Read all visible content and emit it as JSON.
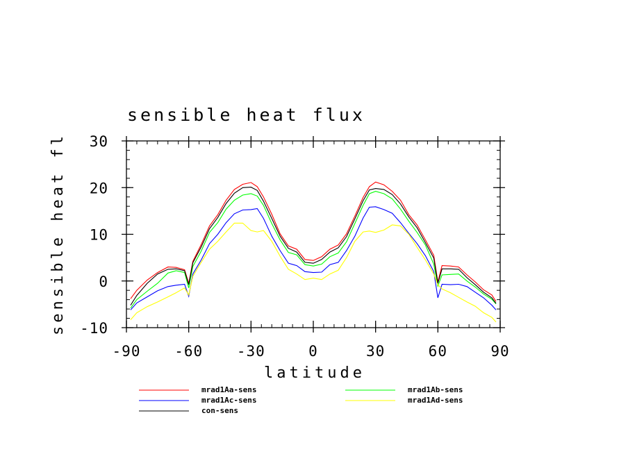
{
  "chart_data": {
    "type": "line",
    "title": "sensible heat flux",
    "xlabel": "latitude",
    "ylabel": "sensible heat fl",
    "xlim": [
      -90,
      90
    ],
    "ylim": [
      -10,
      30
    ],
    "xticks": [
      "-90",
      "-60",
      "-30",
      "0",
      "30",
      "60",
      "90"
    ],
    "yticks": [
      "-10",
      "0",
      "10",
      "20",
      "30"
    ],
    "grid": false,
    "legend_position": "bottom",
    "x": [
      -88,
      -85,
      -80,
      -75,
      -70,
      -66,
      -62,
      -60,
      -58,
      -54,
      -50,
      -46,
      -42,
      -38,
      -34,
      -30,
      -27,
      -24,
      -20,
      -16,
      -12,
      -8,
      -4,
      0,
      4,
      8,
      12,
      16,
      20,
      24,
      27,
      30,
      34,
      38,
      42,
      46,
      50,
      54,
      58,
      60,
      62,
      66,
      70,
      74,
      78,
      82,
      86,
      88
    ],
    "series": [
      {
        "name": "mrad1Aa-sens",
        "color": "#ff0000",
        "values": [
          -3.8,
          -2.0,
          0.2,
          1.8,
          3.0,
          2.9,
          2.4,
          -0.5,
          4.2,
          7.8,
          11.8,
          14.2,
          17.3,
          19.6,
          20.7,
          21.1,
          20.2,
          18.0,
          14.3,
          10.1,
          7.5,
          6.8,
          4.6,
          4.4,
          5.2,
          6.8,
          7.7,
          10.1,
          13.9,
          17.9,
          20.2,
          21.2,
          20.6,
          19.2,
          17.3,
          14.2,
          12.0,
          8.8,
          5.5,
          -0.2,
          3.3,
          3.2,
          3.0,
          1.3,
          -0.2,
          -1.9,
          -3.0,
          -4.4
        ]
      },
      {
        "name": "mrad1Ab-sens",
        "color": "#00ff00",
        "values": [
          -5.8,
          -4.0,
          -2.2,
          -0.5,
          1.7,
          2.2,
          1.8,
          -1.5,
          3.1,
          6.4,
          10.4,
          12.5,
          15.4,
          17.3,
          18.4,
          18.7,
          18.2,
          16.2,
          12.3,
          8.8,
          6.1,
          5.6,
          3.5,
          3.2,
          3.6,
          5.2,
          6.0,
          8.4,
          12.3,
          16.2,
          18.7,
          19.2,
          18.7,
          17.6,
          15.4,
          12.8,
          10.4,
          7.7,
          3.6,
          -1.1,
          1.3,
          1.4,
          1.5,
          0.0,
          -1.3,
          -2.8,
          -3.9,
          -4.9
        ]
      },
      {
        "name": "mrad1Ac-sens",
        "color": "#0000ff",
        "values": [
          -6.2,
          -4.7,
          -3.4,
          -2.1,
          -1.2,
          -0.9,
          -0.7,
          -3.3,
          1.5,
          4.5,
          8.0,
          10.0,
          12.5,
          14.4,
          15.2,
          15.3,
          15.5,
          13.4,
          9.6,
          6.5,
          3.8,
          3.3,
          2.0,
          1.8,
          1.9,
          3.5,
          4.0,
          6.5,
          9.6,
          13.5,
          15.8,
          15.9,
          15.3,
          14.5,
          12.5,
          10.2,
          8.0,
          5.4,
          2.0,
          -3.6,
          -0.7,
          -0.8,
          -0.7,
          -1.2,
          -2.4,
          -3.6,
          -5.2,
          -6.2
        ]
      },
      {
        "name": "mrad1Ad-sens",
        "color": "#ffff00",
        "values": [
          -8.3,
          -6.8,
          -5.5,
          -4.5,
          -3.4,
          -2.5,
          -1.5,
          -3.0,
          1.0,
          4.0,
          6.8,
          8.5,
          10.5,
          12.4,
          12.4,
          10.8,
          10.5,
          10.8,
          8.5,
          5.3,
          2.5,
          1.5,
          0.3,
          0.6,
          0.3,
          1.5,
          2.3,
          5.0,
          8.5,
          10.5,
          10.7,
          10.4,
          10.9,
          12.0,
          11.8,
          10.0,
          7.2,
          4.5,
          1.5,
          -0.8,
          -1.7,
          -2.5,
          -3.5,
          -4.5,
          -5.4,
          -6.8,
          -7.8,
          -8.8
        ]
      },
      {
        "name": "con-sens",
        "color": "#000000",
        "values": [
          -5.2,
          -3.1,
          -0.5,
          1.5,
          2.5,
          2.6,
          2.2,
          -0.8,
          3.9,
          7.3,
          11.2,
          13.6,
          16.6,
          18.8,
          20.0,
          20.1,
          19.4,
          17.1,
          13.4,
          9.6,
          7.0,
          6.2,
          4.0,
          3.8,
          4.6,
          6.2,
          7.1,
          9.5,
          13.3,
          17.2,
          19.5,
          19.8,
          19.6,
          18.5,
          16.5,
          13.7,
          11.4,
          8.2,
          4.9,
          -0.5,
          2.6,
          2.6,
          2.5,
          0.7,
          -0.8,
          -2.4,
          -3.6,
          -4.8
        ]
      }
    ]
  }
}
